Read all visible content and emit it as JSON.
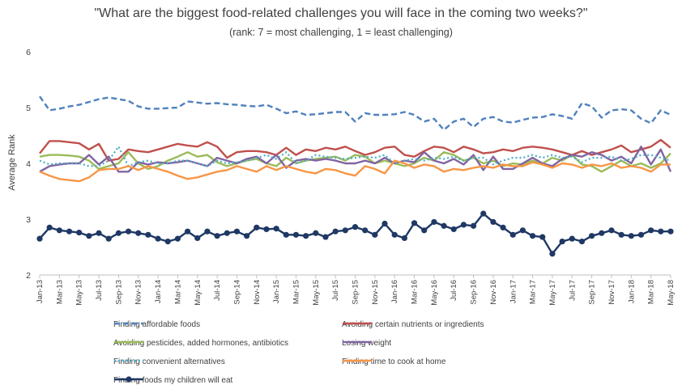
{
  "chart_data": {
    "type": "line",
    "title": "\"What are the biggest food-related challenges you will face in the coming two weeks?\"",
    "subtitle": "(rank: 7 = most challenging, 1 = least challenging)",
    "ylabel": "Average Rank",
    "xlabel": "",
    "ylim": [
      2,
      6
    ],
    "yticks": [
      "2",
      "3",
      "4",
      "5",
      "6"
    ],
    "grid": false,
    "legend_position": "bottom",
    "x_tick_labels": [
      "Jan-13",
      "Mar-13",
      "May-13",
      "Jul-13",
      "Sep-13",
      "Nov-13",
      "Jan-14",
      "Mar-14",
      "May-14",
      "Jul-14",
      "Sep-14",
      "Nov-14",
      "Jan-15",
      "Mar-15",
      "May-15",
      "Jul-15",
      "Sep-15",
      "Nov-15",
      "Jan-16",
      "Mar-16",
      "May-16",
      "Jul-16",
      "Sep-16",
      "Nov-16",
      "Jan-17",
      "Mar-17",
      "May-17",
      "Jul-17",
      "Sep-17",
      "Nov-17",
      "Jan-18",
      "Mar-18",
      "May-18"
    ],
    "n_points": 65,
    "series": [
      {
        "name": "Finding affordable foods",
        "color": "#4f81bd",
        "style": "dashed",
        "values": [
          5.2,
          4.95,
          4.98,
          5.02,
          5.05,
          5.1,
          5.15,
          5.18,
          5.15,
          5.12,
          5.02,
          4.98,
          4.98,
          4.99,
          5.0,
          5.11,
          5.09,
          5.07,
          5.08,
          5.06,
          5.05,
          5.03,
          5.02,
          5.05,
          4.98,
          4.9,
          4.93,
          4.87,
          4.88,
          4.9,
          4.92,
          4.92,
          4.75,
          4.9,
          4.87,
          4.87,
          4.88,
          4.92,
          4.87,
          4.75,
          4.8,
          4.6,
          4.75,
          4.8,
          4.65,
          4.8,
          4.83,
          4.75,
          4.73,
          4.78,
          4.82,
          4.83,
          4.88,
          4.85,
          4.8,
          5.08,
          5.02,
          4.82,
          4.95,
          4.97,
          4.95,
          4.8,
          4.72,
          4.95,
          4.87
        ]
      },
      {
        "name": "Avoiding certain nutrients or ingredients",
        "color": "#c0504d",
        "style": "solid",
        "values": [
          4.18,
          4.4,
          4.4,
          4.38,
          4.36,
          4.25,
          4.35,
          4.05,
          4.08,
          4.25,
          4.22,
          4.2,
          4.25,
          4.3,
          4.35,
          4.32,
          4.3,
          4.38,
          4.3,
          4.1,
          4.2,
          4.22,
          4.22,
          4.2,
          4.15,
          4.28,
          4.15,
          4.25,
          4.22,
          4.28,
          4.25,
          4.3,
          4.22,
          4.15,
          4.2,
          4.28,
          4.3,
          4.15,
          4.12,
          4.22,
          4.3,
          4.28,
          4.2,
          4.3,
          4.25,
          4.18,
          4.2,
          4.25,
          4.22,
          4.28,
          4.3,
          4.28,
          4.25,
          4.2,
          4.15,
          4.22,
          4.15,
          4.2,
          4.25,
          4.32,
          4.2,
          4.25,
          4.3,
          4.42,
          4.28
        ]
      },
      {
        "name": "Avoiding pesticides, added hormones, antibiotics",
        "color": "#9bbb59",
        "style": "solid",
        "values": [
          4.12,
          4.15,
          4.15,
          4.14,
          4.12,
          4.05,
          3.9,
          3.95,
          4.0,
          4.2,
          4.0,
          3.9,
          3.95,
          4.05,
          4.12,
          4.2,
          4.12,
          4.15,
          4.02,
          3.95,
          4.0,
          4.05,
          4.08,
          4.0,
          3.95,
          4.1,
          4.0,
          4.05,
          4.08,
          4.1,
          4.12,
          4.05,
          4.15,
          4.12,
          4.0,
          4.05,
          4.0,
          3.95,
          4.0,
          4.1,
          4.05,
          4.2,
          4.15,
          4.05,
          4.1,
          4.0,
          4.05,
          3.95,
          4.0,
          3.98,
          4.05,
          4.0,
          4.1,
          4.05,
          4.15,
          3.98,
          3.95,
          3.85,
          3.95,
          4.05,
          3.95,
          4.0,
          3.92,
          4.0,
          4.18
        ]
      },
      {
        "name": "Losing weight",
        "color": "#8064a2",
        "style": "solid",
        "values": [
          3.85,
          3.95,
          3.98,
          4.0,
          4.0,
          4.15,
          3.98,
          4.12,
          3.85,
          3.85,
          4.02,
          3.98,
          4.02,
          4.0,
          4.02,
          4.05,
          4.0,
          3.95,
          4.1,
          4.05,
          4.0,
          4.08,
          4.12,
          4.0,
          4.15,
          3.92,
          4.05,
          4.08,
          4.05,
          4.08,
          4.05,
          4.0,
          4.0,
          4.05,
          4.0,
          4.1,
          4.0,
          4.05,
          4.02,
          4.2,
          4.05,
          4.0,
          4.08,
          3.98,
          4.15,
          3.88,
          4.12,
          3.9,
          3.9,
          4.0,
          4.1,
          4.0,
          3.95,
          4.08,
          4.15,
          4.12,
          4.2,
          4.15,
          4.05,
          4.12,
          4.0,
          4.3,
          3.98,
          4.25,
          3.85
        ]
      },
      {
        "name": "Finding convenient alternatives",
        "color": "#4bacc6",
        "style": "dotted",
        "values": [
          4.05,
          3.98,
          4.0,
          4.0,
          4.0,
          3.95,
          3.95,
          4.05,
          4.3,
          3.95,
          4.02,
          4.05,
          4.0,
          4.0,
          4.05,
          4.05,
          4.0,
          3.95,
          4.05,
          4.0,
          4.02,
          4.05,
          4.1,
          4.15,
          4.08,
          4.2,
          4.0,
          4.05,
          4.15,
          4.12,
          4.1,
          4.08,
          4.1,
          4.12,
          4.1,
          4.15,
          4.0,
          4.05,
          4.08,
          4.05,
          4.1,
          4.08,
          4.12,
          4.05,
          4.1,
          4.1,
          3.98,
          4.05,
          4.1,
          4.1,
          4.15,
          4.1,
          4.15,
          4.1,
          4.12,
          4.02,
          4.1,
          4.1,
          4.12,
          4.05,
          4.08,
          4.15,
          4.15,
          4.1,
          4.05
        ]
      },
      {
        "name": "Finding time to cook at home",
        "color": "#f79646",
        "style": "solid",
        "values": [
          3.85,
          3.78,
          3.72,
          3.7,
          3.68,
          3.75,
          3.88,
          3.9,
          3.9,
          3.95,
          3.88,
          3.95,
          3.9,
          3.85,
          3.78,
          3.72,
          3.75,
          3.8,
          3.85,
          3.88,
          3.95,
          3.9,
          3.85,
          3.95,
          3.88,
          3.95,
          3.9,
          3.85,
          3.82,
          3.9,
          3.88,
          3.82,
          3.78,
          3.95,
          3.9,
          3.82,
          4.05,
          4.0,
          3.92,
          3.98,
          3.95,
          3.85,
          3.9,
          3.88,
          3.92,
          3.95,
          3.92,
          3.98,
          3.95,
          3.95,
          4.02,
          3.98,
          3.92,
          4.0,
          3.98,
          3.92,
          3.98,
          3.95,
          4.0,
          3.92,
          3.95,
          3.92,
          3.85,
          3.98,
          3.98
        ]
      },
      {
        "name": "Finding foods my children will eat",
        "color": "#1f3864",
        "style": "solid-markers",
        "values": [
          2.65,
          2.85,
          2.8,
          2.78,
          2.76,
          2.7,
          2.75,
          2.65,
          2.75,
          2.78,
          2.75,
          2.72,
          2.65,
          2.6,
          2.65,
          2.78,
          2.66,
          2.78,
          2.7,
          2.75,
          2.78,
          2.7,
          2.85,
          2.82,
          2.83,
          2.72,
          2.72,
          2.7,
          2.75,
          2.68,
          2.78,
          2.8,
          2.86,
          2.8,
          2.72,
          2.92,
          2.72,
          2.66,
          2.93,
          2.8,
          2.95,
          2.88,
          2.82,
          2.9,
          2.88,
          3.1,
          2.95,
          2.85,
          2.72,
          2.8,
          2.7,
          2.68,
          2.38,
          2.6,
          2.65,
          2.6,
          2.7,
          2.75,
          2.8,
          2.72,
          2.7,
          2.72,
          2.8,
          2.78,
          2.78
        ]
      }
    ]
  }
}
